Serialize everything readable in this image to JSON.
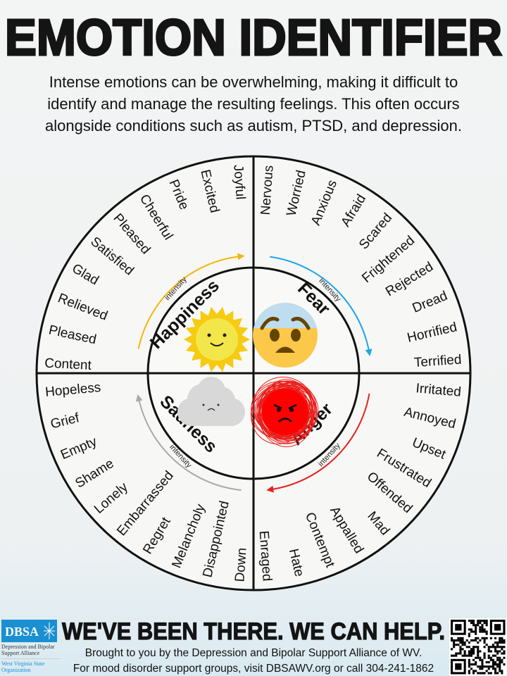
{
  "title": "EMOTION IDENTIFIER",
  "intro": [
    "Intense emotions can be overwhelming, making it difficult to",
    "identify and manage the resulting feelings. This often occurs",
    "alongside conditions such as autism, PTSD, and depression."
  ],
  "quadrants": [
    {
      "id": "happiness",
      "label": "Happiness",
      "intensity_label": "intensity",
      "color": "#f5b50a",
      "icon": "sun-icon",
      "words": [
        "Content",
        "Pleased",
        "Relieved",
        "Glad",
        "Satisfied",
        "Pleased",
        "Cheerful",
        "Pride",
        "Excited",
        "Joyful"
      ]
    },
    {
      "id": "fear",
      "label": "Fear",
      "intensity_label": "intensity",
      "color": "#1ba6e6",
      "icon": "fearful-face-icon",
      "words": [
        "Nervous",
        "Worried",
        "Anxious",
        "Afraid",
        "Scared",
        "Frightened",
        "Rejected",
        "Dread",
        "Horrified",
        "Terrified"
      ]
    },
    {
      "id": "anger",
      "label": "Anger",
      "intensity_label": "intensity",
      "color": "#e8201c",
      "icon": "angry-face-icon",
      "words": [
        "Irritated",
        "Annoyed",
        "Upset",
        "Frustrated",
        "Offended",
        "Mad",
        "Appalled",
        "Contempt",
        "Hate",
        "Enraged"
      ]
    },
    {
      "id": "sadness",
      "label": "Sadness",
      "intensity_label": "intensity",
      "color": "#a9a9a9",
      "icon": "sad-cloud-icon",
      "words": [
        "Down",
        "Disappointed",
        "Melancholy",
        "Regret",
        "Embarrassed",
        "Lonely",
        "Shame",
        "Empty",
        "Grief",
        "Hopeless"
      ]
    }
  ],
  "footer": {
    "logo": {
      "abbr": "DBSA",
      "name": "Depression and Bipolar Support Alliance",
      "sub": "West Virginia State Organization"
    },
    "slogan": "WE'VE BEEN THERE. WE CAN HELP.",
    "line1": "Brought to you by the Depression and Bipolar Support Alliance of WV.",
    "line2": "For mood disorder support groups, visit DBSAWV.org or call 304-241-1862"
  }
}
